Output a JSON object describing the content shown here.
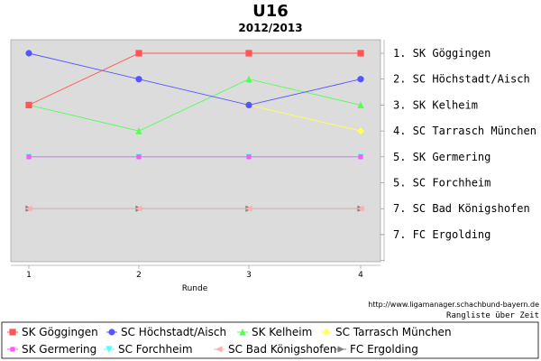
{
  "chart_data": {
    "type": "line",
    "title": "U16",
    "subtitle": "2012/2013",
    "xlabel": "Runde",
    "x": [
      1,
      2,
      3,
      4
    ],
    "ylim": [
      8,
      1
    ],
    "y_inverted": true,
    "grid": false,
    "legend_position": "bottom",
    "right_axis_labels": [
      "1. SK Göggingen",
      "2. SC Höchstadt/Aisch",
      "3. SK Kelheim",
      "4. SC Tarrasch München",
      "5. SK Germering",
      "5. SC Forchheim",
      "7. SC Bad Königshofen",
      "7. FC Ergolding"
    ],
    "series": [
      {
        "name": "SK Göggingen",
        "values": [
          3,
          1,
          1,
          1
        ],
        "color": "#ff5555",
        "marker": "square"
      },
      {
        "name": "SC Höchstadt/Aisch",
        "values": [
          1,
          2,
          3,
          2
        ],
        "color": "#5555ff",
        "marker": "circle"
      },
      {
        "name": "SK Kelheim",
        "values": [
          3,
          4,
          2,
          3
        ],
        "color": "#55ff55",
        "marker": "triangle-up"
      },
      {
        "name": "SC Tarrasch München",
        "values": [
          null,
          null,
          3,
          4
        ],
        "color": "#ffff55",
        "marker": "diamond"
      },
      {
        "name": "SK Germering",
        "values": [
          5,
          5,
          5,
          5
        ],
        "color": "#ff55ff",
        "marker": "square-small"
      },
      {
        "name": "SC Forchheim",
        "values": [
          5,
          5,
          5,
          5
        ],
        "color": "#55ffff",
        "marker": "triangle-down"
      },
      {
        "name": "SC Bad Königshofen",
        "values": [
          7,
          7,
          7,
          7
        ],
        "color": "#ffafaf",
        "marker": "triangle-left"
      },
      {
        "name": "FC Ergolding",
        "values": [
          7,
          7,
          7,
          7
        ],
        "color": "#808080",
        "marker": "triangle-right"
      }
    ]
  },
  "footer": {
    "url": "http://www.ligamanager.schachbund-bayern.de",
    "caption": "Rangliste über Zeit"
  }
}
